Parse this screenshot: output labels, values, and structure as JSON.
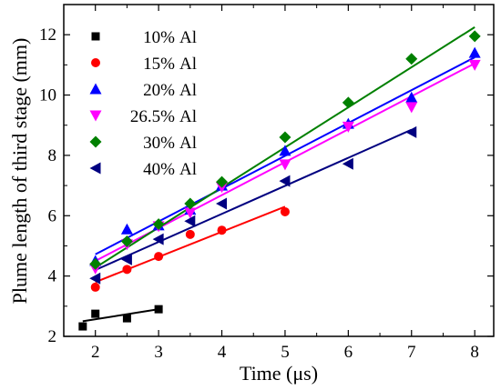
{
  "chart_data": {
    "type": "scatter",
    "title": "",
    "xlabel": "Time (μs)",
    "ylabel": "Plume length of third stage (mm)",
    "xlim": [
      1.5,
      8.3
    ],
    "ylim": [
      2,
      13
    ],
    "xticks": [
      2,
      3,
      4,
      5,
      6,
      7,
      8
    ],
    "yticks": [
      2,
      4,
      6,
      8,
      10,
      12
    ],
    "legend_position": "top-left",
    "grid": false,
    "series": [
      {
        "name": "10%",
        "suffix": "Al",
        "marker": "square",
        "color": "#000000",
        "x": [
          1.8,
          2.0,
          2.5,
          3.0
        ],
        "y": [
          2.33,
          2.75,
          2.6,
          2.9
        ],
        "fit": [
          [
            1.8,
            2.5
          ],
          [
            3.0,
            2.9
          ]
        ]
      },
      {
        "name": "15%",
        "suffix": "Al",
        "marker": "circle",
        "color": "#ff0000",
        "x": [
          2.0,
          2.5,
          3.0,
          3.5,
          4.0,
          5.0
        ],
        "y": [
          3.63,
          4.22,
          4.65,
          5.38,
          5.52,
          6.13
        ],
        "fit": [
          [
            2.0,
            3.8
          ],
          [
            5.0,
            6.3
          ]
        ]
      },
      {
        "name": "20%",
        "suffix": "Al",
        "marker": "triangle-up",
        "color": "#0000ff",
        "x": [
          2.0,
          2.5,
          3.0,
          3.5,
          4.0,
          5.0,
          6.0,
          7.0,
          8.0
        ],
        "y": [
          4.5,
          5.55,
          5.68,
          6.2,
          7.0,
          8.15,
          9.05,
          9.92,
          11.4
        ],
        "fit": [
          [
            2.0,
            4.72
          ],
          [
            8.0,
            11.25
          ]
        ]
      },
      {
        "name": "26.5%",
        "suffix": "Al",
        "marker": "triangle-down",
        "color": "#ff00ff",
        "x": [
          2.0,
          2.5,
          3.0,
          3.5,
          4.0,
          5.0,
          6.0,
          7.0,
          8.0
        ],
        "y": [
          4.25,
          5.05,
          5.65,
          6.1,
          6.95,
          7.7,
          8.95,
          9.6,
          11.0
        ],
        "fit": [
          [
            2.0,
            4.5
          ],
          [
            8.0,
            11.05
          ]
        ]
      },
      {
        "name": "30%",
        "suffix": "Al",
        "marker": "diamond",
        "color": "#008000",
        "x": [
          2.0,
          2.5,
          3.0,
          3.5,
          4.0,
          5.0,
          6.0,
          7.0,
          8.0
        ],
        "y": [
          4.4,
          5.15,
          5.72,
          6.4,
          7.12,
          8.6,
          9.75,
          11.2,
          11.95
        ],
        "fit": [
          [
            2.0,
            4.28
          ],
          [
            8.0,
            12.25
          ]
        ]
      },
      {
        "name": "40%",
        "suffix": "Al",
        "marker": "triangle-left",
        "color": "#000080",
        "x": [
          2.0,
          2.5,
          3.0,
          3.5,
          4.0,
          5.0,
          6.0,
          7.0
        ],
        "y": [
          3.92,
          4.55,
          5.22,
          5.82,
          6.4,
          7.15,
          7.72,
          8.77
        ],
        "fit": [
          [
            2.0,
            4.2
          ],
          [
            7.0,
            8.85
          ]
        ]
      }
    ]
  }
}
